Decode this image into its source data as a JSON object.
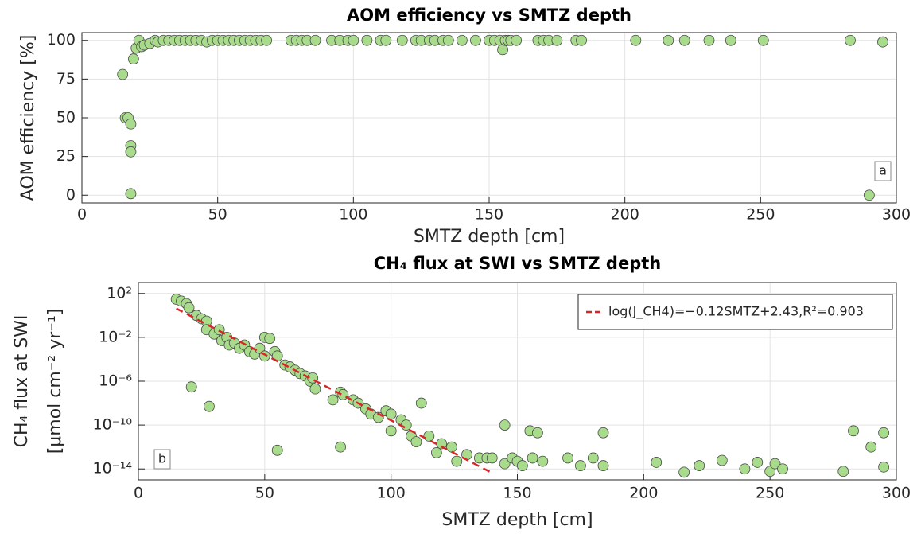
{
  "chart_data": [
    {
      "type": "scatter",
      "title": "AOM efficiency vs SMTZ depth",
      "xlabel": "SMTZ depth [cm]",
      "ylabel": "AOM efficiency  [%]",
      "xlim": [
        0,
        300
      ],
      "xticks": [
        0,
        50,
        100,
        150,
        200,
        250,
        300
      ],
      "ylim": [
        -5,
        105
      ],
      "yticks": [
        0,
        25,
        50,
        75,
        100
      ],
      "grid": true,
      "annotation": "a",
      "series": [
        {
          "color": "#a8dc8c",
          "x": [
            15,
            16,
            17,
            18,
            18,
            18,
            18,
            19,
            20,
            21,
            22,
            23,
            25,
            27,
            28,
            30,
            32,
            34,
            36,
            38,
            40,
            42,
            44,
            46,
            48,
            50,
            52,
            54,
            56,
            58,
            60,
            62,
            64,
            66,
            68,
            77,
            79,
            81,
            83,
            86,
            92,
            95,
            98,
            100,
            105,
            110,
            112,
            118,
            123,
            125,
            128,
            130,
            133,
            135,
            140,
            145,
            150,
            152,
            154,
            155,
            156,
            157,
            158,
            160,
            168,
            170,
            172,
            175,
            182,
            184,
            204,
            216,
            222,
            231,
            239,
            251,
            283,
            290,
            295
          ],
          "values": [
            78,
            50,
            50,
            46,
            32,
            28,
            1,
            88,
            95,
            100,
            96,
            97,
            98,
            100,
            99,
            100,
            100,
            100,
            100,
            100,
            100,
            100,
            100,
            99,
            100,
            100,
            100,
            100,
            100,
            100,
            100,
            100,
            100,
            100,
            100,
            100,
            100,
            100,
            100,
            100,
            100,
            100,
            100,
            100,
            100,
            100,
            100,
            100,
            100,
            100,
            100,
            100,
            100,
            100,
            100,
            100,
            100,
            100,
            100,
            94,
            100,
            100,
            100,
            100,
            100,
            100,
            100,
            100,
            100,
            100,
            100,
            100,
            100,
            100,
            100,
            100,
            100,
            0,
            99
          ]
        }
      ]
    },
    {
      "type": "scatter",
      "title": "CH₄ flux at SWI vs SMTZ depth",
      "xlabel": "SMTZ depth [cm]",
      "ylabel": "CH₄ flux at SWI",
      "ylabel2": "[μmol cm⁻² yr⁻¹]",
      "xlim": [
        0,
        300
      ],
      "xticks": [
        0,
        50,
        100,
        150,
        200,
        250,
        300
      ],
      "yscale": "log",
      "ylim": [
        1e-15,
        1000
      ],
      "yticks": [
        {
          "value": 100,
          "label": "10²"
        },
        {
          "value": 0.01,
          "label": "10⁻²"
        },
        {
          "value": 1e-06,
          "label": "10⁻⁶"
        },
        {
          "value": 1e-10,
          "label": "10⁻¹⁰"
        },
        {
          "value": 1e-14,
          "label": "10⁻¹⁴"
        }
      ],
      "grid": true,
      "legend": "upper right",
      "annotation": "b",
      "series": [
        {
          "color": "#a8dc8c",
          "x": [
            15,
            17,
            19,
            20,
            23,
            25,
            27,
            27,
            30,
            32,
            33,
            35,
            36,
            38,
            40,
            42,
            44,
            46,
            48,
            50,
            50,
            52,
            54,
            55,
            58,
            60,
            62,
            64,
            66,
            68,
            69,
            70,
            21,
            28,
            55,
            77,
            80,
            81,
            80,
            85,
            87,
            90,
            92,
            95,
            98,
            100,
            100,
            104,
            106,
            108,
            110,
            112,
            115,
            118,
            120,
            124,
            126,
            130,
            135,
            138,
            140,
            145,
            145,
            148,
            150,
            152,
            155,
            156,
            158,
            160,
            170,
            175,
            180,
            184,
            184,
            205,
            216,
            222,
            231,
            240,
            245,
            250,
            252,
            255,
            279,
            283,
            290,
            295,
            295
          ],
          "values": [
            30,
            20,
            12,
            5,
            1,
            0.5,
            0.3,
            0.05,
            0.02,
            0.05,
            0.005,
            0.01,
            0.002,
            0.003,
            0.001,
            0.002,
            0.0005,
            0.0003,
            0.001,
            0.0002,
            0.01,
            0.008,
            0.0005,
            0.0002,
            3e-05,
            2e-05,
            1e-05,
            5e-06,
            3e-06,
            1e-06,
            2e-06,
            2e-07,
            3e-07,
            5e-09,
            5e-13,
            2e-08,
            1e-07,
            6e-08,
            1e-12,
            2e-08,
            1e-08,
            3e-09,
            1e-09,
            5e-10,
            2e-09,
            3e-11,
            1e-09,
            3e-10,
            1e-10,
            1e-11,
            3e-12,
            1e-08,
            1e-11,
            3e-13,
            2e-12,
            1e-12,
            5e-14,
            2e-13,
            1e-13,
            1e-13,
            1e-13,
            1e-10,
            3e-14,
            1e-13,
            5e-14,
            2e-14,
            3e-11,
            1e-13,
            2e-11,
            5e-14,
            1e-13,
            2e-14,
            1e-13,
            2e-11,
            2e-14,
            4e-14,
            5e-15,
            2e-14,
            6e-14,
            1e-14,
            4e-14,
            6e-15,
            3e-14,
            1e-14,
            6e-15,
            3e-11,
            1e-12,
            2e-11,
            1.5e-14
          ]
        },
        {
          "name": "log(J_CH4)=−0.12SMTZ+2.43,R²=0.903",
          "color": "#d62728",
          "line": "dashed",
          "x": [
            15,
            140
          ],
          "values": [
            4.27,
            4.3e-15
          ]
        }
      ]
    }
  ]
}
